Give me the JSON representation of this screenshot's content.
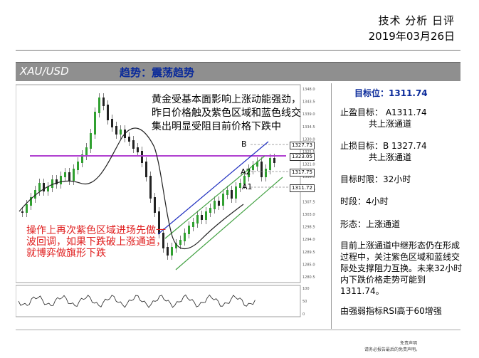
{
  "header": {
    "title": "技术 分析 日评",
    "date": "2019年03月26日"
  },
  "bar": {
    "symbol": "XAU/USD",
    "trend": "趋势：震荡趋势"
  },
  "chart": {
    "annotation_main": "黄金受基本面影响上涨动能强劲，昨日价格触及紫色区域和蓝色线交集出明显受阻目前价格下跌中",
    "annotation_red": "操作上再次紫色区域进场先做一波回调，如果下跌破上涨通道，就博弈做旗形下跌",
    "level_labels": [
      "B",
      "A2",
      "A1"
    ],
    "price_tags": [
      "1327.73",
      "1323.05",
      "1317.75",
      "1311.72"
    ],
    "axis_ticks": [
      "1348.00",
      "1343.50",
      "1339.00",
      "1334.50",
      "1330.00",
      "1325.50",
      "1321.00",
      "1316.50",
      "1312.00",
      "1307.50",
      "1303.00",
      "1298.50",
      "1294.00",
      "1289.50",
      "1285.00",
      "1280.50"
    ],
    "rsi_ticks": [
      "100",
      "50",
      "0"
    ],
    "colors": {
      "purple": "#b040d0",
      "blue": "#2030c0",
      "green": "#40a040",
      "red": "#e02020"
    }
  },
  "side": {
    "target": "目标位：1311.74",
    "take_profit": "止盈目标：  A1311.74",
    "take_profit_note": "共上涨通道",
    "stop_loss": "止损目标：B 1327.74",
    "stop_loss_note": "共上涨通道",
    "time_limit": "目标时限：32小时",
    "period": "时段：4小时",
    "pattern": "形态：上涨通道",
    "desc": "目前上涨通道中继形态仍在形成过程中，关注紫色区域和蓝线交际处支撑阻力互换。未来32小时内下跌价格走势可能到1311.74。",
    "rsi": "由强弱指标RSI高于60增强"
  },
  "footer": {
    "line1": "免责声明",
    "line2": "请务必报告最后的免责声明。"
  }
}
